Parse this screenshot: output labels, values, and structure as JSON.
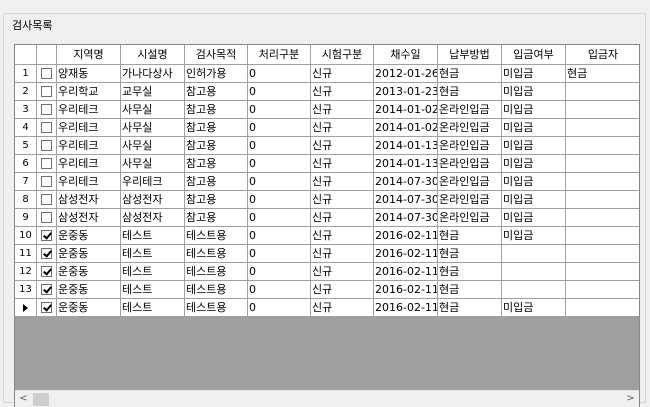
{
  "group": {
    "title": "검사목록"
  },
  "columns": [
    "지역명",
    "시설명",
    "검사목적",
    "처리구분",
    "시험구분",
    "채수일",
    "납부방법",
    "입금여부",
    "입금자"
  ],
  "rows": [
    {
      "num": "1",
      "checked": false,
      "current": false,
      "cells": [
        "양재동",
        "가나다상사",
        "인허가용",
        "0",
        "신규",
        "2012-01-26",
        "현금",
        "미입금",
        "현금"
      ]
    },
    {
      "num": "2",
      "checked": false,
      "current": false,
      "cells": [
        "우리학교",
        "교무실",
        "참고용",
        "0",
        "신규",
        "2013-01-23",
        "현금",
        "미입금",
        ""
      ]
    },
    {
      "num": "3",
      "checked": false,
      "current": false,
      "cells": [
        "우리테크",
        "사무실",
        "참고용",
        "0",
        "신규",
        "2014-01-02",
        "온라인입금",
        "미입금",
        ""
      ]
    },
    {
      "num": "4",
      "checked": false,
      "current": false,
      "cells": [
        "우리테크",
        "사무실",
        "참고용",
        "0",
        "신규",
        "2014-01-02",
        "온라인입금",
        "미입금",
        ""
      ]
    },
    {
      "num": "5",
      "checked": false,
      "current": false,
      "cells": [
        "우리테크",
        "사무실",
        "참고용",
        "0",
        "신규",
        "2014-01-13",
        "온라인입금",
        "미입금",
        ""
      ]
    },
    {
      "num": "6",
      "checked": false,
      "current": false,
      "cells": [
        "우리테크",
        "사무실",
        "참고용",
        "0",
        "신규",
        "2014-01-13",
        "온라인입금",
        "미입금",
        ""
      ]
    },
    {
      "num": "7",
      "checked": false,
      "current": false,
      "cells": [
        "우리테크",
        "우리테크",
        "참고용",
        "0",
        "신규",
        "2014-07-30",
        "온라인입금",
        "미입금",
        ""
      ]
    },
    {
      "num": "8",
      "checked": false,
      "current": false,
      "cells": [
        "삼성전자",
        "삼성전자",
        "참고용",
        "0",
        "신규",
        "2014-07-30",
        "온라인입금",
        "미입금",
        ""
      ]
    },
    {
      "num": "9",
      "checked": false,
      "current": false,
      "cells": [
        "삼성전자",
        "삼성전자",
        "참고용",
        "0",
        "신규",
        "2014-07-30",
        "온라인입금",
        "미입금",
        ""
      ]
    },
    {
      "num": "10",
      "checked": true,
      "current": false,
      "cells": [
        "운중동",
        "테스트",
        "테스트용",
        "0",
        "신규",
        "2016-02-11",
        "현금",
        "미입금",
        ""
      ]
    },
    {
      "num": "11",
      "checked": true,
      "current": false,
      "cells": [
        "운중동",
        "테스트",
        "테스트용",
        "0",
        "신규",
        "2016-02-11",
        "현금",
        "",
        ""
      ]
    },
    {
      "num": "12",
      "checked": true,
      "current": false,
      "cells": [
        "운중동",
        "테스트",
        "테스트용",
        "0",
        "신규",
        "2016-02-11",
        "현금",
        "",
        ""
      ]
    },
    {
      "num": "13",
      "checked": true,
      "current": false,
      "cells": [
        "운중동",
        "테스트",
        "테스트용",
        "0",
        "신규",
        "2016-02-11",
        "현금",
        "",
        ""
      ]
    },
    {
      "num": "",
      "checked": true,
      "current": true,
      "cells": [
        "운중동",
        "테스트",
        "테스트용",
        "0",
        "신규",
        "2016-02-11",
        "현금",
        "미입금",
        ""
      ]
    }
  ],
  "scrollbar": {
    "left_icon": "chevron-left-icon",
    "right_icon": "chevron-right-icon",
    "left_glyph": "<",
    "right_glyph": ">"
  },
  "row_pointer_icon": "row-pointer-arrow-icon"
}
